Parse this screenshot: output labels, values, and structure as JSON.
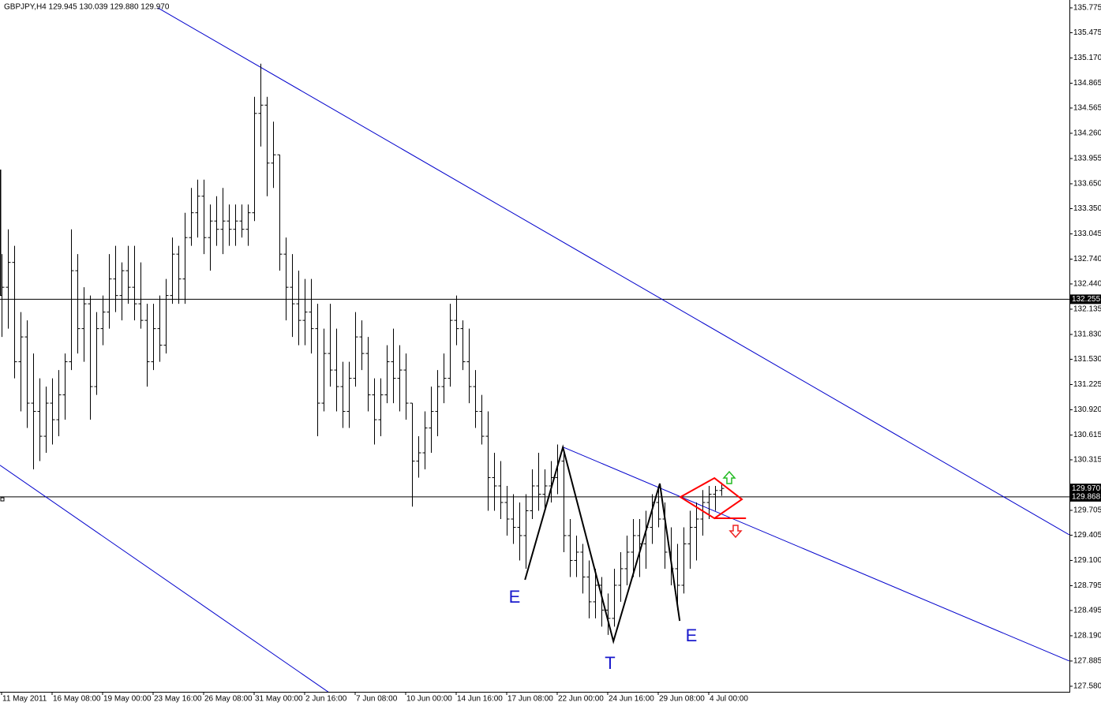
{
  "chart_data": {
    "type": "ohlc",
    "title": "GBPJPY,H4  129.945 130.039 129.880 129.970",
    "categories": [
      "11 May 2011",
      null,
      null,
      null,
      null,
      null,
      null,
      null,
      "16 May 08:00",
      null,
      null,
      null,
      null,
      null,
      null,
      null,
      "19 May 00:00",
      null,
      null,
      null,
      null,
      null,
      null,
      null,
      "23 May 16:00",
      null,
      null,
      null,
      null,
      null,
      null,
      null,
      "26 May 08:00",
      null,
      null,
      null,
      null,
      null,
      null,
      null,
      "31 May 00:00",
      null,
      null,
      null,
      null,
      null,
      null,
      null,
      "2 Jun 16:00",
      null,
      null,
      null,
      null,
      null,
      null,
      null,
      "7 Jun 08:00",
      null,
      null,
      null,
      null,
      null,
      null,
      null,
      "10 Jun 00:00",
      null,
      null,
      null,
      null,
      null,
      null,
      null,
      "14 Jun 16:00",
      null,
      null,
      null,
      null,
      null,
      null,
      null,
      "17 Jun 08:00",
      null,
      null,
      null,
      null,
      null,
      null,
      null,
      "22 Jun 00:00",
      null,
      null,
      null,
      null,
      null,
      null,
      null,
      "24 Jun 16:00",
      null,
      null,
      null,
      null,
      null,
      null,
      null,
      "29 Jun 08:00",
      null,
      null,
      null,
      null,
      null,
      null,
      null,
      "4 Jul 00:00",
      null,
      null
    ],
    "bars": [
      [
        132.3,
        132.8,
        131.8,
        132.4
      ],
      [
        132.4,
        133.1,
        131.9,
        132.7
      ],
      [
        132.7,
        132.9,
        131.3,
        131.5
      ],
      [
        131.5,
        132.1,
        130.9,
        131.8
      ],
      [
        131.8,
        132.0,
        130.7,
        131.0
      ],
      [
        131.0,
        131.6,
        130.2,
        130.9
      ],
      [
        130.9,
        131.3,
        130.3,
        130.6
      ],
      [
        130.6,
        131.2,
        130.4,
        131.0
      ],
      [
        131.0,
        131.3,
        130.5,
        130.8
      ],
      [
        130.8,
        131.4,
        130.6,
        131.1
      ],
      [
        131.1,
        131.6,
        130.8,
        131.5
      ],
      [
        131.5,
        133.1,
        131.4,
        132.6
      ],
      [
        132.6,
        132.8,
        131.6,
        131.9
      ],
      [
        131.9,
        132.4,
        131.5,
        132.2
      ],
      [
        132.2,
        132.3,
        130.8,
        131.2
      ],
      [
        131.2,
        132.1,
        131.1,
        131.9
      ],
      [
        131.9,
        132.3,
        131.7,
        132.1
      ],
      [
        132.1,
        132.8,
        131.9,
        132.5
      ],
      [
        132.5,
        132.9,
        132.1,
        132.3
      ],
      [
        132.3,
        132.7,
        132.0,
        132.6
      ],
      [
        132.6,
        132.9,
        132.2,
        132.4
      ],
      [
        132.4,
        132.9,
        132.0,
        132.2
      ],
      [
        132.2,
        132.7,
        131.9,
        132.0
      ],
      [
        132.0,
        132.2,
        131.2,
        131.5
      ],
      [
        131.5,
        132.2,
        131.4,
        131.9
      ],
      [
        131.9,
        132.3,
        131.5,
        131.7
      ],
      [
        131.7,
        132.5,
        131.6,
        132.3
      ],
      [
        132.3,
        133.0,
        132.2,
        132.8
      ],
      [
        132.8,
        132.9,
        132.2,
        132.5
      ],
      [
        132.5,
        133.3,
        132.2,
        133.0
      ],
      [
        133.0,
        133.6,
        132.9,
        133.3
      ],
      [
        133.3,
        133.7,
        133.0,
        133.5
      ],
      [
        133.5,
        133.7,
        132.8,
        133.0
      ],
      [
        133.0,
        133.4,
        132.6,
        133.2
      ],
      [
        133.2,
        133.5,
        132.9,
        133.1
      ],
      [
        133.1,
        133.6,
        132.8,
        133.2
      ],
      [
        133.2,
        133.4,
        132.9,
        133.1
      ],
      [
        133.1,
        133.4,
        132.9,
        133.2
      ],
      [
        133.2,
        133.4,
        133.0,
        133.1
      ],
      [
        133.1,
        133.4,
        132.9,
        133.3
      ],
      [
        133.3,
        134.7,
        133.2,
        134.5
      ],
      [
        134.5,
        135.1,
        134.1,
        134.6
      ],
      [
        134.6,
        134.7,
        133.5,
        133.9
      ],
      [
        133.9,
        134.4,
        133.6,
        134.0
      ],
      [
        134.0,
        134.0,
        132.6,
        132.8
      ],
      [
        132.8,
        133.0,
        132.0,
        132.4
      ],
      [
        132.4,
        132.8,
        131.8,
        132.2
      ],
      [
        132.2,
        132.6,
        131.7,
        132.0
      ],
      [
        132.0,
        132.5,
        131.7,
        132.1
      ],
      [
        132.1,
        132.5,
        131.6,
        131.9
      ],
      [
        131.9,
        132.2,
        130.6,
        131.0
      ],
      [
        131.0,
        131.9,
        130.9,
        131.6
      ],
      [
        131.6,
        132.2,
        131.2,
        131.4
      ],
      [
        131.4,
        131.9,
        130.9,
        131.2
      ],
      [
        131.2,
        131.5,
        130.7,
        130.9
      ],
      [
        130.9,
        131.5,
        130.7,
        131.3
      ],
      [
        131.3,
        132.1,
        131.2,
        131.8
      ],
      [
        131.8,
        132.0,
        131.4,
        131.6
      ],
      [
        131.6,
        131.8,
        130.9,
        131.1
      ],
      [
        131.1,
        131.3,
        130.5,
        130.8
      ],
      [
        130.8,
        131.3,
        130.6,
        131.1
      ],
      [
        131.1,
        131.7,
        131.0,
        131.5
      ],
      [
        131.5,
        131.9,
        131.0,
        131.3
      ],
      [
        131.3,
        131.7,
        130.9,
        131.4
      ],
      [
        131.4,
        131.6,
        130.8,
        131.0
      ],
      [
        131.0,
        131.0,
        129.75,
        130.3
      ],
      [
        130.3,
        130.6,
        130.1,
        130.4
      ],
      [
        130.4,
        130.9,
        130.2,
        130.7
      ],
      [
        130.7,
        131.2,
        130.4,
        130.9
      ],
      [
        130.9,
        131.4,
        130.6,
        131.2
      ],
      [
        131.2,
        131.6,
        131.0,
        131.3
      ],
      [
        131.3,
        132.2,
        131.2,
        132.0
      ],
      [
        132.0,
        132.3,
        131.7,
        131.9
      ],
      [
        131.9,
        132.0,
        131.4,
        131.5
      ],
      [
        131.5,
        131.9,
        131.0,
        131.2
      ],
      [
        131.2,
        131.4,
        130.7,
        130.9
      ],
      [
        130.9,
        131.1,
        130.5,
        130.6
      ],
      [
        130.6,
        130.9,
        129.7,
        130.1
      ],
      [
        130.1,
        130.4,
        129.7,
        130.0
      ],
      [
        130.0,
        130.3,
        129.6,
        129.8
      ],
      [
        129.8,
        130.0,
        129.4,
        129.6
      ],
      [
        129.6,
        129.9,
        129.3,
        129.5
      ],
      [
        129.5,
        129.8,
        129.1,
        129.4
      ],
      [
        129.4,
        129.9,
        129.0,
        129.7
      ],
      [
        129.7,
        130.2,
        129.6,
        130.0
      ],
      [
        130.0,
        130.4,
        129.7,
        129.9
      ],
      [
        129.9,
        130.2,
        129.7,
        130.0
      ],
      [
        130.0,
        130.3,
        129.8,
        130.1
      ],
      [
        130.1,
        130.5,
        129.9,
        130.3
      ],
      [
        130.3,
        130.4,
        129.2,
        129.4
      ],
      [
        129.4,
        129.6,
        128.9,
        129.1
      ],
      [
        129.1,
        129.4,
        128.9,
        129.2
      ],
      [
        129.2,
        129.3,
        128.7,
        128.9
      ],
      [
        128.9,
        129.1,
        128.4,
        128.6
      ],
      [
        128.6,
        129.0,
        128.4,
        128.8
      ],
      [
        128.8,
        128.9,
        128.3,
        128.5
      ],
      [
        128.5,
        128.7,
        128.2,
        128.4
      ],
      [
        128.4,
        129.0,
        128.3,
        128.8
      ],
      [
        128.8,
        129.2,
        128.6,
        129.0
      ],
      [
        129.0,
        129.4,
        128.8,
        129.2
      ],
      [
        129.2,
        129.6,
        128.9,
        129.4
      ],
      [
        129.4,
        129.6,
        128.9,
        129.3
      ],
      [
        129.3,
        129.7,
        129.0,
        129.5
      ],
      [
        129.5,
        129.9,
        129.3,
        129.8
      ],
      [
        129.8,
        130.0,
        129.5,
        129.6
      ],
      [
        129.6,
        129.8,
        129.0,
        129.2
      ],
      [
        129.2,
        129.5,
        128.8,
        129.0
      ],
      [
        129.0,
        129.3,
        128.5,
        128.8
      ],
      [
        128.8,
        129.5,
        128.7,
        129.3
      ],
      [
        129.3,
        129.7,
        129.0,
        129.5
      ],
      [
        129.5,
        129.8,
        129.1,
        129.6
      ],
      [
        129.6,
        129.95,
        129.4,
        129.8
      ],
      [
        129.8,
        130.0,
        129.6,
        129.9
      ],
      [
        129.9,
        130.0,
        129.7,
        129.945
      ],
      [
        129.945,
        130.039,
        129.88,
        129.97
      ]
    ],
    "xlim": [
      -0.25,
      169.125
    ],
    "ylim": [
      127.513,
      135.87
    ],
    "yticks": [
      135.775,
      135.475,
      {
        "value": 135.17,
        "label": "135.170"
      },
      134.865,
      134.565,
      {
        "value": 134.26,
        "label": "134.260"
      },
      133.955,
      {
        "value": 133.65,
        "label": "133.650"
      },
      {
        "value": 133.35,
        "label": "133.350"
      },
      133.045,
      {
        "value": 132.74,
        "label": "132.740"
      },
      {
        "value": 132.44,
        "label": "132.440"
      },
      132.135,
      {
        "value": 131.83,
        "label": "131.830"
      },
      {
        "value": 131.53,
        "label": "131.530"
      },
      131.225,
      {
        "value": 130.92,
        "label": "130.920"
      },
      130.615,
      130.315,
      129.705,
      129.405,
      {
        "value": 129.1,
        "label": "129.100"
      },
      128.795,
      128.495,
      {
        "value": 128.19,
        "label": "128.190"
      },
      127.885,
      {
        "value": 127.58,
        "label": "127.580"
      }
    ],
    "bar_color": "#000000",
    "hlines": [
      132.255,
      129.868
    ],
    "price_label": {
      "value": 129.97,
      "label": "129.970"
    },
    "trend_lines": [
      {
        "color": "#0000cc",
        "points": [
          [
            24.75,
            135.775
          ],
          [
            169.1,
            129.41
          ]
        ]
      },
      {
        "color": "#0000cc",
        "points": [
          [
            -0.25,
            130.25
          ],
          [
            51.75,
            127.51
          ]
        ]
      },
      {
        "color": "#0000cc",
        "points": [
          [
            88.9,
            130.47
          ],
          [
            169.1,
            127.885
          ]
        ]
      }
    ],
    "zigzag": {
      "color": "#000000",
      "x": [
        82.9,
        88.9,
        96.9,
        104.25,
        107.4
      ],
      "y": [
        128.866,
        130.467,
        128.123,
        130.028,
        128.37
      ]
    },
    "diamond": {
      "color": "#ff0000",
      "x": [
        107.5,
        112.9,
        117.25,
        112.9
      ],
      "y": [
        129.866,
        130.095,
        129.838,
        129.609
      ]
    },
    "annotations": [
      "E",
      "T",
      "E"
    ]
  }
}
